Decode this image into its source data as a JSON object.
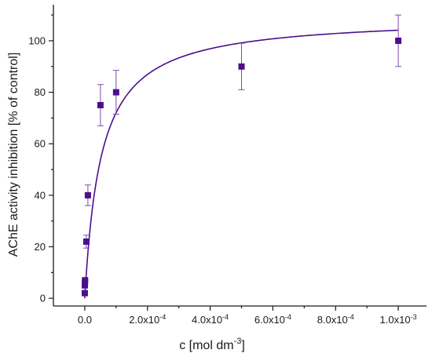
{
  "chart_data": {
    "type": "scatter",
    "title": "",
    "xlabel": "c [mol dm",
    "xlabel_sup": "-3",
    "xlabel_close": "]",
    "ylabel": "AChE activity inhibition [% of control]",
    "xlim": [
      -0.0001,
      0.00109
    ],
    "ylim": [
      -3,
      114
    ],
    "x_ticks": [
      {
        "value": 0.0,
        "mant": "0.0",
        "exp": ""
      },
      {
        "value": 0.0002,
        "mant": "2.0x10",
        "exp": "-4"
      },
      {
        "value": 0.0004,
        "mant": "4.0x10",
        "exp": "-4"
      },
      {
        "value": 0.0006,
        "mant": "6.0x10",
        "exp": "-4"
      },
      {
        "value": 0.0008,
        "mant": "8.0x10",
        "exp": "-4"
      },
      {
        "value": 0.001,
        "mant": "1.0x10",
        "exp": "-3"
      }
    ],
    "y_ticks": [
      0,
      20,
      40,
      60,
      80,
      100
    ],
    "grid": false,
    "marker_color": "#4b0f8c",
    "line_color": "#4b0f8c",
    "errorbar_color": "#7d4aa8",
    "series": [
      {
        "points": [
          {
            "x": 1e-07,
            "y": 2,
            "err": 0
          },
          {
            "x": 2e-07,
            "y": 5,
            "err": 0
          },
          {
            "x": 5e-07,
            "y": 6,
            "err": 0
          },
          {
            "x": 1e-06,
            "y": 7,
            "err": 0
          },
          {
            "x": 5e-06,
            "y": 22,
            "err": 2.5
          },
          {
            "x": 1e-05,
            "y": 40,
            "err": 4
          },
          {
            "x": 5e-05,
            "y": 75,
            "err": 8
          },
          {
            "x": 0.0001,
            "y": 80,
            "err": 8.5
          },
          {
            "x": 0.0005,
            "y": 90,
            "err": 9
          },
          {
            "x": 0.001,
            "y": 100,
            "err": 10
          }
        ]
      }
    ],
    "fit_curve": {
      "vmax": 109.5,
      "k": 5.2e-05
    }
  }
}
